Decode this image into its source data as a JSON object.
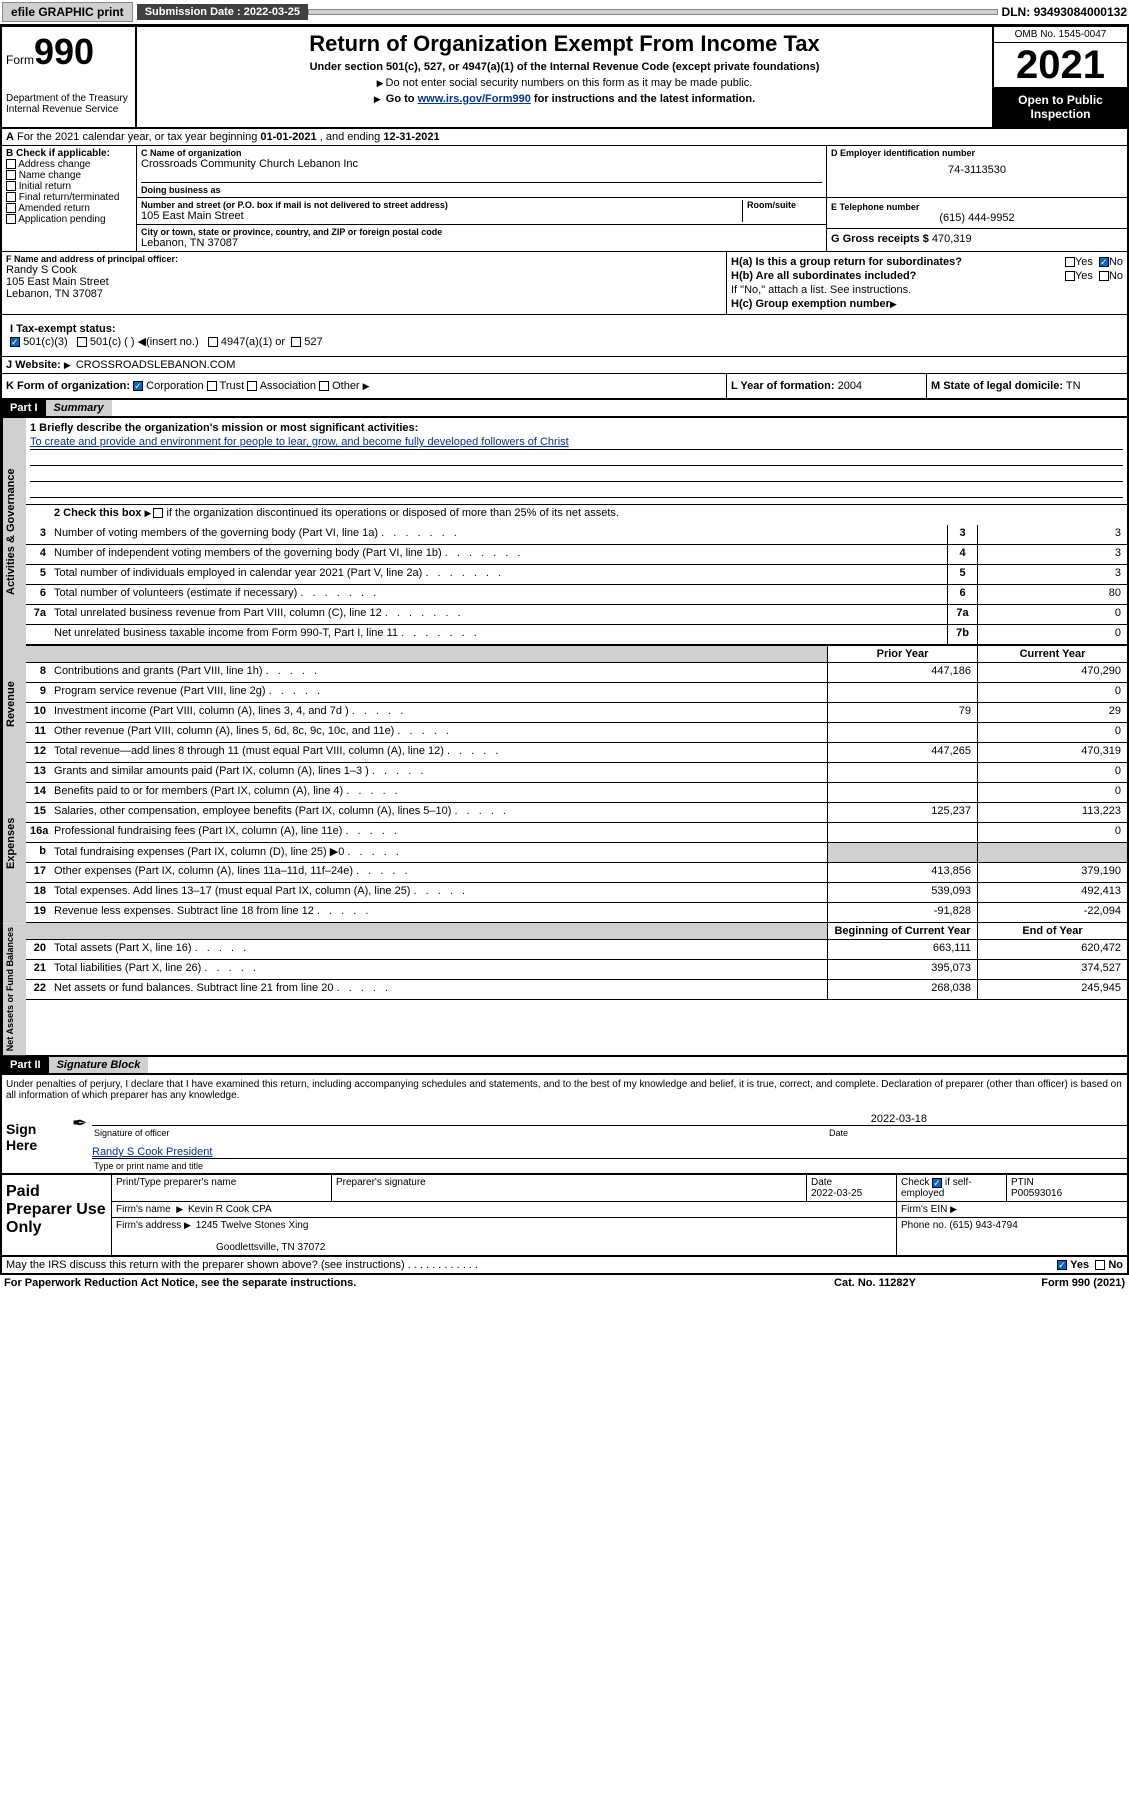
{
  "topbar": {
    "efile": "efile GRAPHIC print",
    "subdate_label": "Submission Date :",
    "subdate": "2022-03-25",
    "dln_label": "DLN:",
    "dln": "93493084000132"
  },
  "header": {
    "form_word": "Form",
    "form_num": "990",
    "title": "Return of Organization Exempt From Income Tax",
    "sub1": "Under section 501(c), 527, or 4947(a)(1) of the Internal Revenue Code (except private foundations)",
    "sub2": "Do not enter social security numbers on this form as it may be made public.",
    "sub3_pre": "Go to ",
    "sub3_link": "www.irs.gov/Form990",
    "sub3_post": " for instructions and the latest information.",
    "dept": "Department of the Treasury\nInternal Revenue Service",
    "omb": "OMB No. 1545-0047",
    "year": "2021",
    "inspection": "Open to Public Inspection"
  },
  "row_a": {
    "label": "A",
    "text_pre": "For the 2021 calendar year, or tax year beginning ",
    "begin": "01-01-2021",
    "text_mid": " , and ending ",
    "end": "12-31-2021"
  },
  "section_b": {
    "label": "B Check if applicable:",
    "items": [
      "Address change",
      "Name change",
      "Initial return",
      "Final return/terminated",
      "Amended return",
      "Application pending"
    ]
  },
  "section_c": {
    "name_label": "C Name of organization",
    "name": "Crossroads Community Church Lebanon Inc",
    "dba_label": "Doing business as",
    "dba": "",
    "street_label": "Number and street (or P.O. box if mail is not delivered to street address)",
    "room_label": "Room/suite",
    "street": "105 East Main Street",
    "city_label": "City or town, state or province, country, and ZIP or foreign postal code",
    "city": "Lebanon, TN  37087"
  },
  "section_d": {
    "ein_label": "D Employer identification number",
    "ein": "74-3113530",
    "phone_label": "E Telephone number",
    "phone": "(615) 444-9952",
    "gross_label": "G Gross receipts $",
    "gross": "470,319"
  },
  "section_f": {
    "label": "F Name and address of principal officer:",
    "name": "Randy S Cook",
    "street": "105 East Main Street",
    "city": "Lebanon, TN  37087"
  },
  "section_h": {
    "ha_label": "H(a)  Is this a group return for subordinates?",
    "ha_yes": "Yes",
    "ha_no": "No",
    "hb_label": "H(b)  Are all subordinates included?",
    "hb_yes": "Yes",
    "hb_no": "No",
    "hb_note": "If \"No,\" attach a list. See instructions.",
    "hc_label": "H(c)  Group exemption number"
  },
  "section_i": {
    "label": "I  Tax-exempt status:",
    "opt1": "501(c)(3)",
    "opt2": "501(c) (  )",
    "opt2_note": "(insert no.)",
    "opt3": "4947(a)(1) or",
    "opt4": "527"
  },
  "section_j": {
    "label": "J  Website:",
    "value": "CROSSROADSLEBANON.COM"
  },
  "section_k": {
    "label": "K Form of organization:",
    "opts": [
      "Corporation",
      "Trust",
      "Association",
      "Other"
    ]
  },
  "section_l": {
    "label": "L Year of formation:",
    "value": "2004"
  },
  "section_m": {
    "label": "M State of legal domicile:",
    "value": "TN"
  },
  "part1": {
    "header": "Part I",
    "title": "Summary",
    "q1_label": "1  Briefly describe the organization's mission or most significant activities:",
    "q1_text": "To create and provide and environment for people to lear, grow, and become fully developed followers of Christ",
    "q2_label": "2  Check this box",
    "q2_text": "if the organization discontinued its operations or disposed of more than 25% of its net assets.",
    "tabs": {
      "gov": "Activities & Governance",
      "rev": "Revenue",
      "exp": "Expenses",
      "net": "Net Assets or Fund Balances"
    },
    "lines_gov": [
      {
        "n": "3",
        "d": "Number of voting members of the governing body (Part VI, line 1a)",
        "bn": "3",
        "v": "3"
      },
      {
        "n": "4",
        "d": "Number of independent voting members of the governing body (Part VI, line 1b)",
        "bn": "4",
        "v": "3"
      },
      {
        "n": "5",
        "d": "Total number of individuals employed in calendar year 2021 (Part V, line 2a)",
        "bn": "5",
        "v": "3"
      },
      {
        "n": "6",
        "d": "Total number of volunteers (estimate if necessary)",
        "bn": "6",
        "v": "80"
      },
      {
        "n": "7a",
        "d": "Total unrelated business revenue from Part VIII, column (C), line 12",
        "bn": "7a",
        "v": "0"
      },
      {
        "n": "",
        "d": "Net unrelated business taxable income from Form 990-T, Part I, line 11",
        "bn": "7b",
        "v": "0"
      }
    ],
    "col_headers": {
      "prior": "Prior Year",
      "current": "Current Year",
      "begin": "Beginning of Current Year",
      "end": "End of Year"
    },
    "lines_rev": [
      {
        "n": "8",
        "d": "Contributions and grants (Part VIII, line 1h)",
        "p": "447,186",
        "c": "470,290"
      },
      {
        "n": "9",
        "d": "Program service revenue (Part VIII, line 2g)",
        "p": "",
        "c": "0"
      },
      {
        "n": "10",
        "d": "Investment income (Part VIII, column (A), lines 3, 4, and 7d )",
        "p": "79",
        "c": "29"
      },
      {
        "n": "11",
        "d": "Other revenue (Part VIII, column (A), lines 5, 6d, 8c, 9c, 10c, and 11e)",
        "p": "",
        "c": "0"
      },
      {
        "n": "12",
        "d": "Total revenue—add lines 8 through 11 (must equal Part VIII, column (A), line 12)",
        "p": "447,265",
        "c": "470,319"
      }
    ],
    "lines_exp": [
      {
        "n": "13",
        "d": "Grants and similar amounts paid (Part IX, column (A), lines 1–3 )",
        "p": "",
        "c": "0"
      },
      {
        "n": "14",
        "d": "Benefits paid to or for members (Part IX, column (A), line 4)",
        "p": "",
        "c": "0"
      },
      {
        "n": "15",
        "d": "Salaries, other compensation, employee benefits (Part IX, column (A), lines 5–10)",
        "p": "125,237",
        "c": "113,223"
      },
      {
        "n": "16a",
        "d": "Professional fundraising fees (Part IX, column (A), line 11e)",
        "p": "",
        "c": "0"
      },
      {
        "n": "b",
        "d": "Total fundraising expenses (Part IX, column (D), line 25) ▶0",
        "p": "shade",
        "c": "shade"
      },
      {
        "n": "17",
        "d": "Other expenses (Part IX, column (A), lines 11a–11d, 11f–24e)",
        "p": "413,856",
        "c": "379,190"
      },
      {
        "n": "18",
        "d": "Total expenses. Add lines 13–17 (must equal Part IX, column (A), line 25)",
        "p": "539,093",
        "c": "492,413"
      },
      {
        "n": "19",
        "d": "Revenue less expenses. Subtract line 18 from line 12",
        "p": "-91,828",
        "c": "-22,094"
      }
    ],
    "lines_net": [
      {
        "n": "20",
        "d": "Total assets (Part X, line 16)",
        "p": "663,111",
        "c": "620,472"
      },
      {
        "n": "21",
        "d": "Total liabilities (Part X, line 26)",
        "p": "395,073",
        "c": "374,527"
      },
      {
        "n": "22",
        "d": "Net assets or fund balances. Subtract line 21 from line 20",
        "p": "268,038",
        "c": "245,945"
      }
    ]
  },
  "part2": {
    "header": "Part II",
    "title": "Signature Block",
    "declaration": "Under penalties of perjury, I declare that I have examined this return, including accompanying schedules and statements, and to the best of my knowledge and belief, it is true, correct, and complete. Declaration of preparer (other than officer) is based on all information of which preparer has any knowledge.",
    "sign_here": "Sign Here",
    "sig_officer": "Signature of officer",
    "sig_date": "2022-03-18",
    "date_label": "Date",
    "officer_name": "Randy S Cook President",
    "officer_name_label": "Type or print name and title",
    "paid": "Paid Preparer Use Only",
    "prep_name_label": "Print/Type preparer's name",
    "prep_sig_label": "Preparer's signature",
    "prep_date_label": "Date",
    "prep_date": "2022-03-25",
    "check_if": "Check",
    "check_if2": "if self-employed",
    "ptin_label": "PTIN",
    "ptin": "P00593016",
    "firm_name_label": "Firm's name",
    "firm_name": "Kevin R Cook CPA",
    "firm_ein_label": "Firm's EIN",
    "firm_addr_label": "Firm's address",
    "firm_addr": "1245 Twelve Stones Xing",
    "firm_city": "Goodlettsville, TN  37072",
    "firm_phone_label": "Phone no.",
    "firm_phone": "(615) 943-4794",
    "discuss": "May the IRS discuss this return with the preparer shown above? (see instructions)",
    "yes": "Yes",
    "no": "No"
  },
  "footer": {
    "paperwork": "For Paperwork Reduction Act Notice, see the separate instructions.",
    "catno": "Cat. No. 11282Y",
    "formref": "Form 990 (2021)"
  }
}
